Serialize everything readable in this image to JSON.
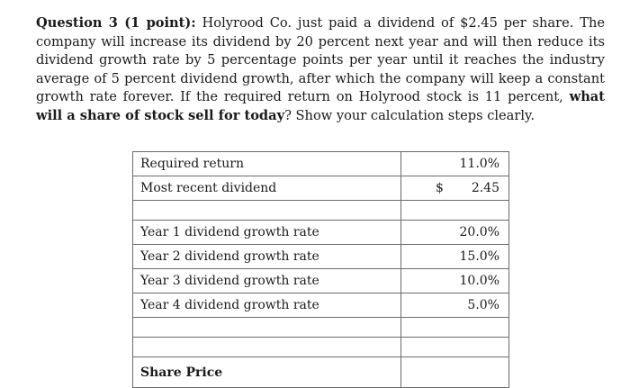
{
  "question": {
    "heading": "Question 3 (1 point):",
    "text_before_bold": " Holyrood Co. just paid a dividend of $2.45 per share. The company will increase its dividend by 20 percent next year and will then reduce its dividend growth rate by 5 percentage points per year until it reaches the industry average of 5 percent dividend growth, after which the company will keep a constant growth rate forever. If the required return on Holyrood stock is 11 percent, ",
    "bold_question": "what will a share of stock sell for today",
    "text_after_bold": "? Show your calculation steps clearly."
  },
  "table": {
    "required_return": {
      "label": "Required return",
      "value": "11.0%"
    },
    "recent_dividend": {
      "label": "Most recent dividend",
      "currency": "$",
      "value": "2.45"
    },
    "growth_rates": [
      {
        "label": "Year 1 dividend growth rate",
        "value": "20.0%"
      },
      {
        "label": "Year 2 dividend growth rate",
        "value": "15.0%"
      },
      {
        "label": "Year 3 dividend growth rate",
        "value": "10.0%"
      },
      {
        "label": "Year 4 dividend growth rate",
        "value": "5.0%"
      }
    ],
    "share_price": {
      "label": "Share Price",
      "value": ""
    }
  }
}
